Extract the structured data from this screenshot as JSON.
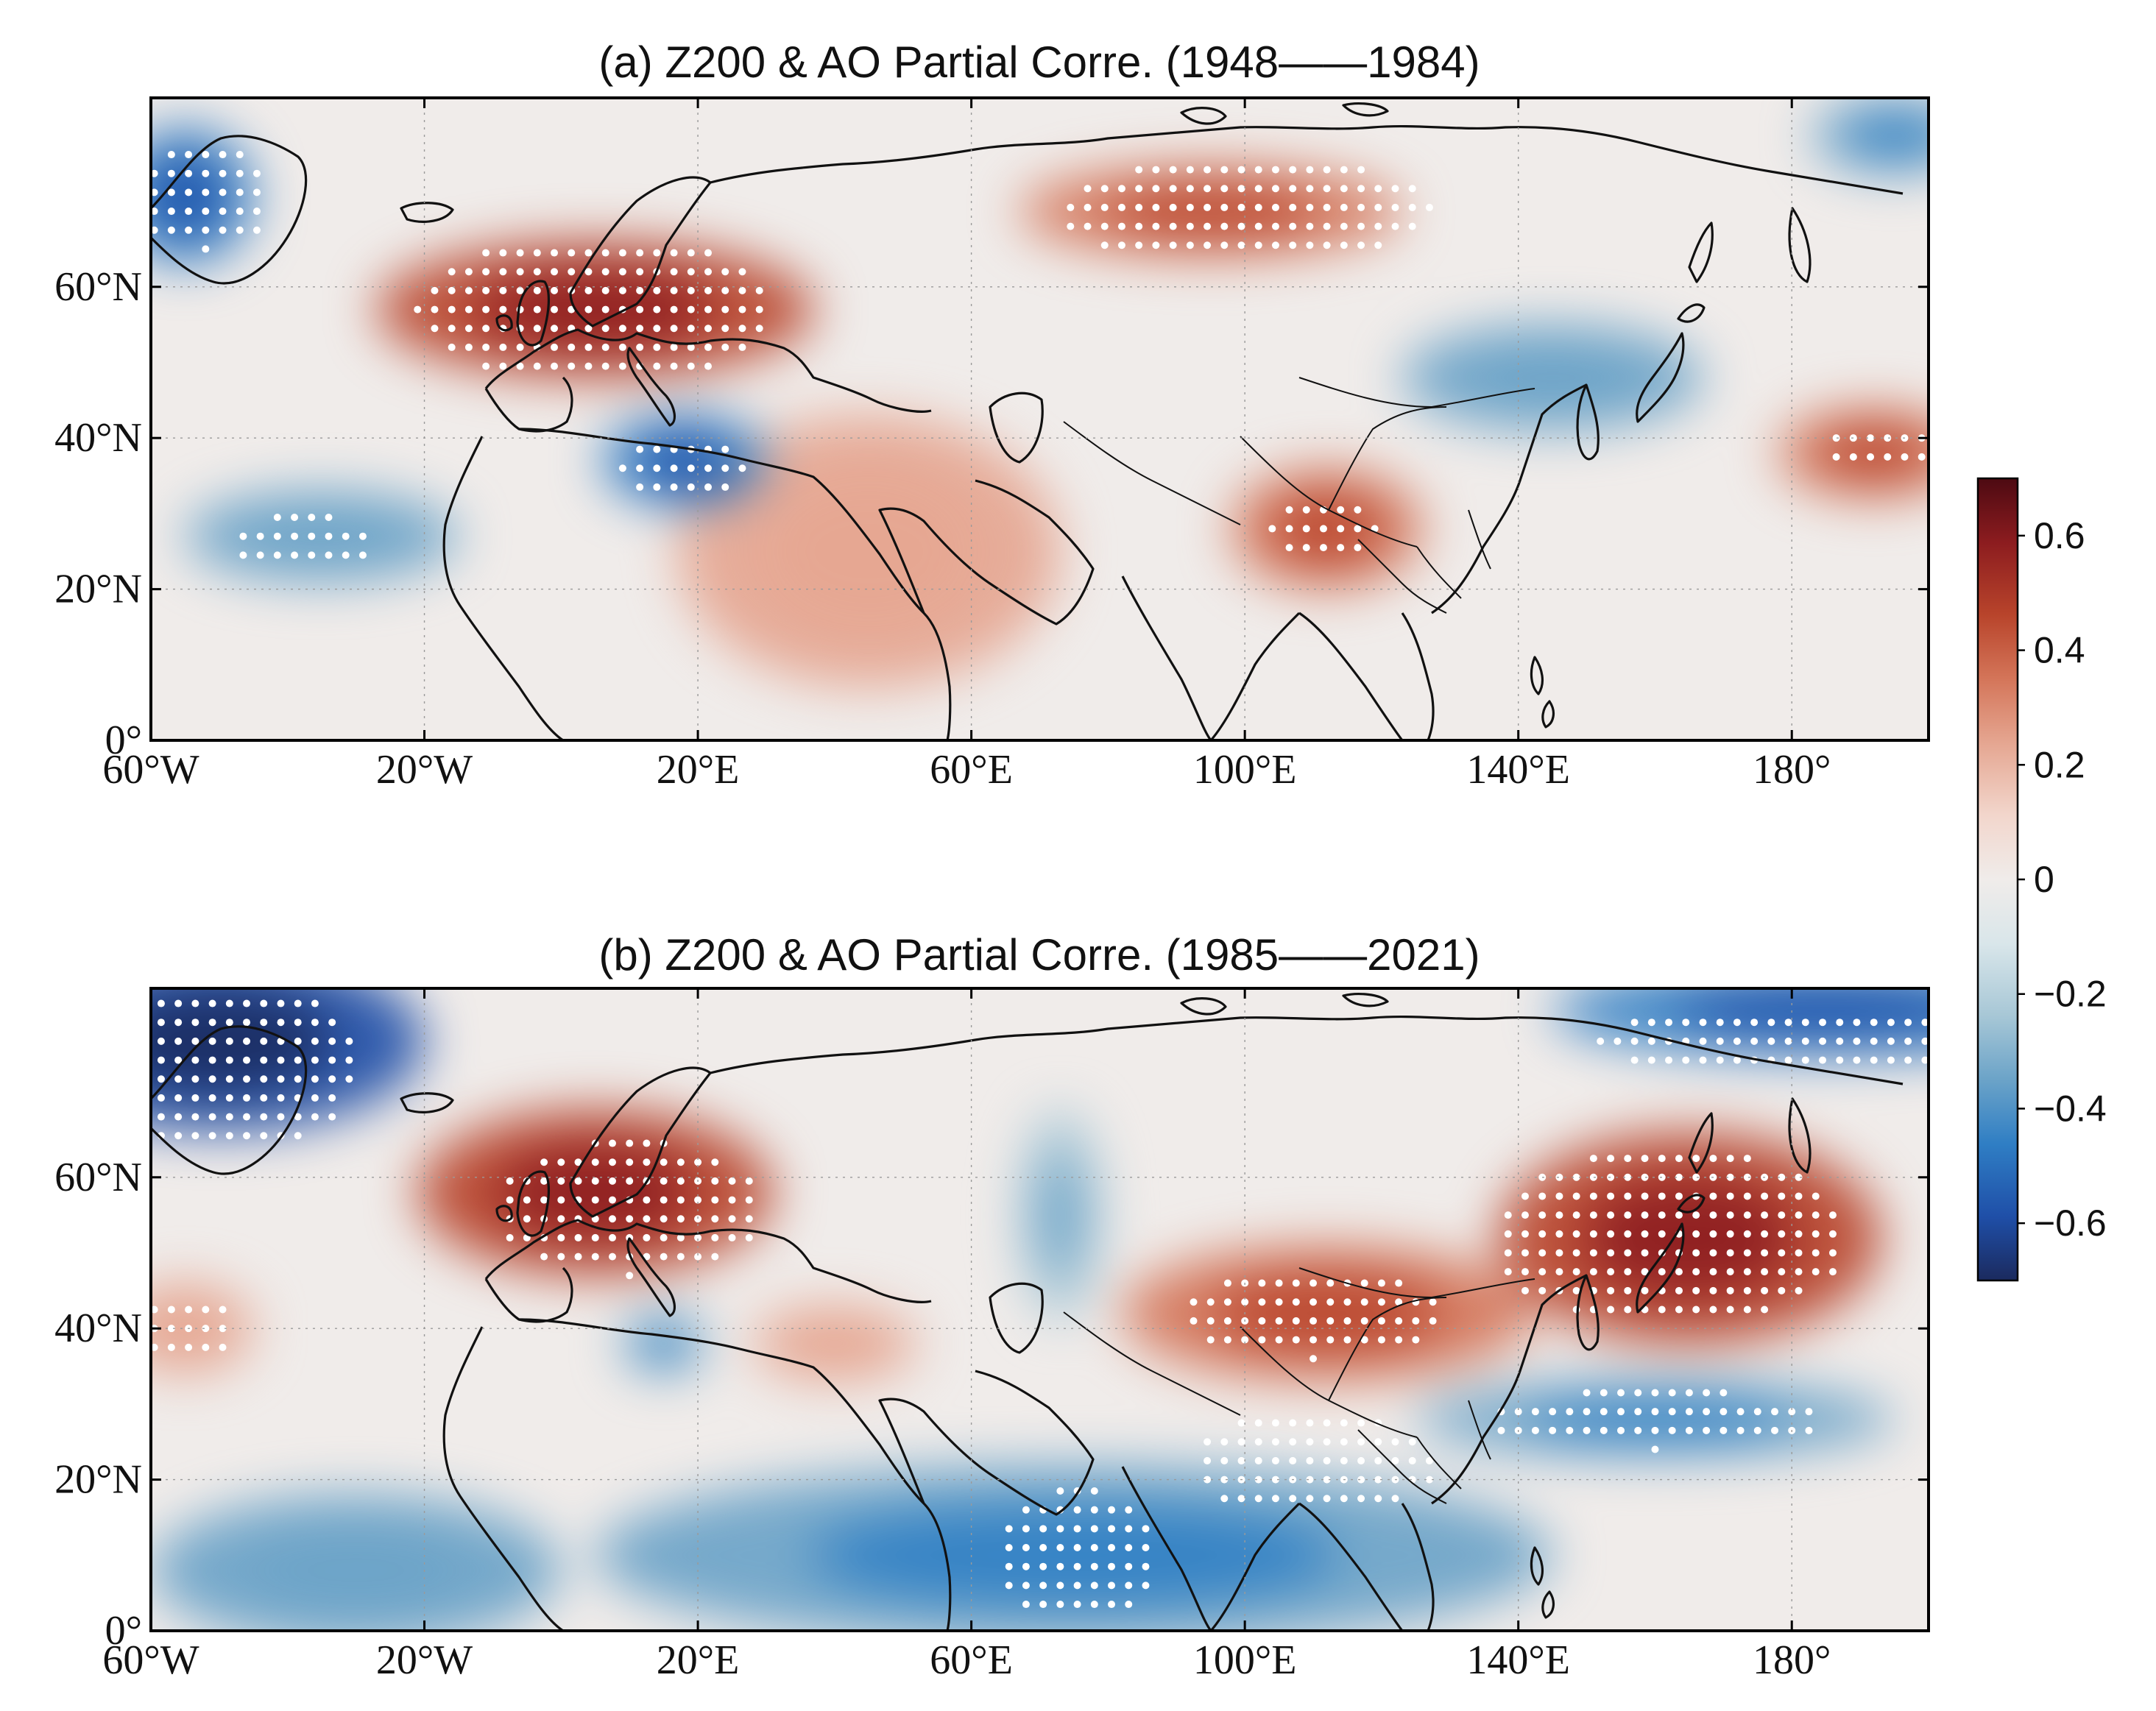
{
  "figure": {
    "panels": [
      {
        "id": "a",
        "title": "(a) Z200 & AO Partial Corre. (1948——1984)",
        "period": "1948-1984",
        "domain": {
          "lon_range": [
            -60,
            200
          ],
          "lat_range": [
            0,
            85
          ]
        },
        "anomalies": [
          {
            "lon": 5,
            "lat": 57,
            "value": 0.5,
            "rx": 32,
            "ry": 9
          },
          {
            "lon": 95,
            "lat": 70,
            "value": 0.4,
            "rx": 28,
            "ry": 6
          },
          {
            "lon": 112,
            "lat": 28,
            "value": 0.33,
            "rx": 14,
            "ry": 8
          },
          {
            "lon": 192,
            "lat": 38,
            "value": 0.38,
            "rx": 14,
            "ry": 6
          },
          {
            "lon": 45,
            "lat": 25,
            "value": 0.22,
            "rx": 28,
            "ry": 18
          },
          {
            "lon": -55,
            "lat": 72,
            "value": -0.42,
            "rx": 10,
            "ry": 9
          },
          {
            "lon": 18,
            "lat": 37,
            "value": -0.45,
            "rx": 12,
            "ry": 6
          },
          {
            "lon": -35,
            "lat": 27,
            "value": -0.3,
            "rx": 20,
            "ry": 6
          },
          {
            "lon": 145,
            "lat": 48,
            "value": -0.3,
            "rx": 22,
            "ry": 7
          },
          {
            "lon": 195,
            "lat": 80,
            "value": -0.4,
            "rx": 12,
            "ry": 5
          }
        ],
        "significance": [
          {
            "lon": 5,
            "lat": 57,
            "rx": 26,
            "ry": 10
          },
          {
            "lon": 100,
            "lat": 70,
            "rx": 28,
            "ry": 7
          },
          {
            "lon": -52,
            "lat": 72,
            "rx": 10,
            "ry": 7
          },
          {
            "lon": 18,
            "lat": 36,
            "rx": 9,
            "ry": 5
          },
          {
            "lon": -38,
            "lat": 26,
            "rx": 11,
            "ry": 4
          },
          {
            "lon": 112,
            "lat": 28,
            "rx": 8,
            "ry": 5
          },
          {
            "lon": 193,
            "lat": 38,
            "rx": 9,
            "ry": 3
          }
        ]
      },
      {
        "id": "b",
        "title": "(b) Z200 & AO Partial Corre. (1985——2021)",
        "period": "1985-2021",
        "domain": {
          "lon_range": [
            -60,
            200
          ],
          "lat_range": [
            0,
            85
          ]
        },
        "anomalies": [
          {
            "lon": 5,
            "lat": 58,
            "value": 0.42,
            "rx": 26,
            "ry": 11
          },
          {
            "lon": 112,
            "lat": 42,
            "value": 0.38,
            "rx": 30,
            "ry": 9
          },
          {
            "lon": 165,
            "lat": 52,
            "value": 0.42,
            "rx": 28,
            "ry": 14
          },
          {
            "lon": -55,
            "lat": 40,
            "value": 0.22,
            "rx": 10,
            "ry": 6
          },
          {
            "lon": 40,
            "lat": 38,
            "value": 0.22,
            "rx": 12,
            "ry": 5
          },
          {
            "lon": -50,
            "lat": 78,
            "value": -0.6,
            "rx": 30,
            "ry": 12
          },
          {
            "lon": 185,
            "lat": 82,
            "value": -0.45,
            "rx": 40,
            "ry": 6
          },
          {
            "lon": 75,
            "lat": 10,
            "value": -0.35,
            "rx": 70,
            "ry": 12
          },
          {
            "lon": 160,
            "lat": 28,
            "value": -0.4,
            "rx": 35,
            "ry": 5
          },
          {
            "lon": 15,
            "lat": 38,
            "value": -0.4,
            "rx": 6,
            "ry": 4
          },
          {
            "lon": 73,
            "lat": 55,
            "value": -0.25,
            "rx": 6,
            "ry": 14
          },
          {
            "lon": -30,
            "lat": 8,
            "value": -0.3,
            "rx": 30,
            "ry": 10
          }
        ],
        "significance": [
          {
            "lon": -48,
            "lat": 75,
            "rx": 18,
            "ry": 12
          },
          {
            "lon": 10,
            "lat": 56,
            "rx": 20,
            "ry": 9
          },
          {
            "lon": 110,
            "lat": 42,
            "rx": 20,
            "ry": 6
          },
          {
            "lon": 162,
            "lat": 52,
            "rx": 26,
            "ry": 12
          },
          {
            "lon": 160,
            "lat": 28,
            "rx": 25,
            "ry": 4
          },
          {
            "lon": 110,
            "lat": 22,
            "rx": 18,
            "ry": 7
          },
          {
            "lon": 75,
            "lat": 10,
            "rx": 12,
            "ry": 9
          },
          {
            "lon": -55,
            "lat": 40,
            "rx": 7,
            "ry": 5
          },
          {
            "lon": 180,
            "lat": 78,
            "rx": 28,
            "ry": 5
          }
        ]
      }
    ],
    "axes": {
      "x_ticks": [
        "60°W",
        "20°W",
        "20°E",
        "60°E",
        "100°E",
        "140°E",
        "180°"
      ],
      "x_tick_values": [
        -60,
        -20,
        20,
        60,
        100,
        140,
        180
      ],
      "y_ticks": [
        "0°",
        "20°N",
        "40°N",
        "60°N"
      ],
      "y_tick_values": [
        0,
        20,
        40,
        60
      ]
    },
    "colorbar": {
      "ticks": [
        {
          "label": "0.6",
          "value": 0.6
        },
        {
          "label": "0.4",
          "value": 0.4
        },
        {
          "label": "0.2",
          "value": 0.2
        },
        {
          "label": "0",
          "value": 0
        },
        {
          "label": "−0.2",
          "value": -0.2
        },
        {
          "label": "−0.4",
          "value": -0.4
        },
        {
          "label": "−0.6",
          "value": -0.6
        }
      ],
      "range": [
        -0.7,
        0.7
      ],
      "colors": [
        "#1b2a5e",
        "#1f4fa8",
        "#2f7ec4",
        "#6ba3c8",
        "#a7c7d6",
        "#d9e6ea",
        "#f0ecea",
        "#f2d6cc",
        "#e5a691",
        "#d47559",
        "#b8442b",
        "#8c1c1f",
        "#4d0a12"
      ]
    }
  }
}
